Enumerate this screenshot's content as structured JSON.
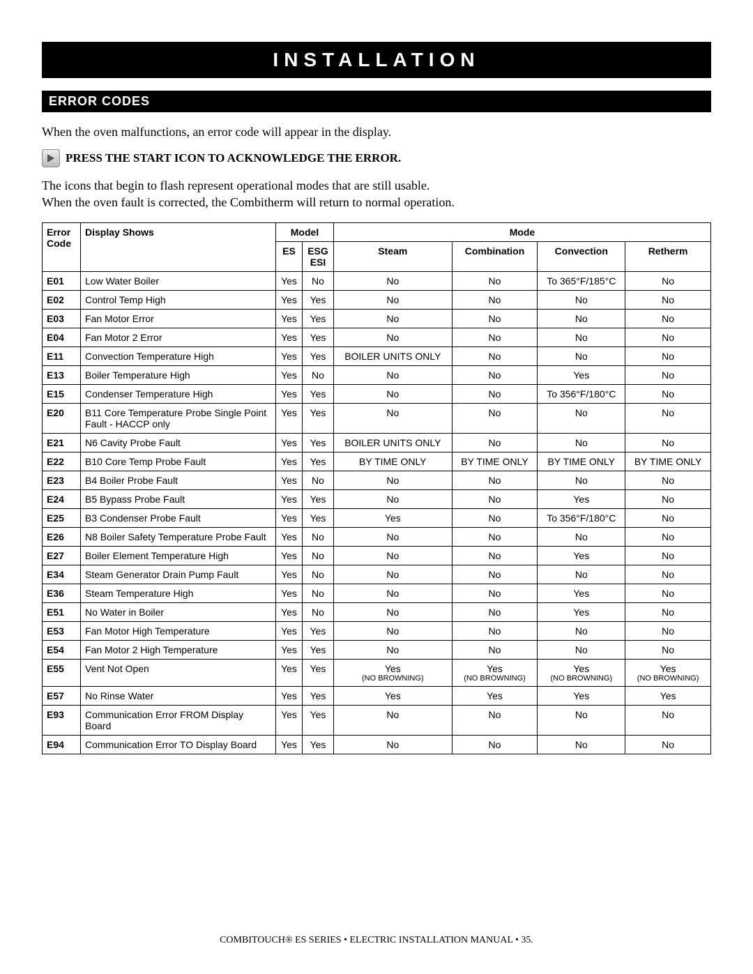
{
  "title": "INSTALLATION",
  "section": "ERROR CODES",
  "intro": "When the oven malfunctions, an error code will appear in the display.",
  "pressText": "PRESS THE START ICON TO ACKNOWLEDGE THE ERROR.",
  "body1": "The icons that begin to flash represent operational modes that are still usable.",
  "body2": "When the oven fault is corrected, the Combitherm will return to normal operation.",
  "headers": {
    "errorCode": "Error Code",
    "displayShows": "Display Shows",
    "model": "Model",
    "es": "ES",
    "esg": "ESG",
    "esi": "ESI",
    "mode": "Mode",
    "steam": "Steam",
    "combination": "Combination",
    "convection": "Convection",
    "retherm": "Retherm"
  },
  "rows": [
    {
      "code": "E01",
      "display": "Low Water Boiler",
      "es": "Yes",
      "esg": "No",
      "steam": "No",
      "combination": "No",
      "convection": "To 365°F/185°C",
      "retherm": "No"
    },
    {
      "code": "E02",
      "display": "Control Temp High",
      "es": "Yes",
      "esg": "Yes",
      "steam": "No",
      "combination": "No",
      "convection": "No",
      "retherm": "No"
    },
    {
      "code": "E03",
      "display": "Fan Motor Error",
      "es": "Yes",
      "esg": "Yes",
      "steam": "No",
      "combination": "No",
      "convection": "No",
      "retherm": "No"
    },
    {
      "code": "E04",
      "display": "Fan Motor 2 Error",
      "es": "Yes",
      "esg": "Yes",
      "steam": "No",
      "combination": "No",
      "convection": "No",
      "retherm": "No"
    },
    {
      "code": "E11",
      "display": "Convection Temperature High",
      "es": "Yes",
      "esg": "Yes",
      "steam": "BOILER UNITS ONLY",
      "combination": "No",
      "convection": "No",
      "retherm": "No"
    },
    {
      "code": "E13",
      "display": "Boiler Temperature High",
      "es": "Yes",
      "esg": "No",
      "steam": "No",
      "combination": "No",
      "convection": "Yes",
      "retherm": "No"
    },
    {
      "code": "E15",
      "display": "Condenser Temperature High",
      "es": "Yes",
      "esg": "Yes",
      "steam": "No",
      "combination": "No",
      "convection": "To 356°F/180°C",
      "retherm": "No"
    },
    {
      "code": "E20",
      "display": "B11 Core Temperature Probe Single Point Fault - HACCP only",
      "es": "Yes",
      "esg": "Yes",
      "steam": "No",
      "combination": "No",
      "convection": "No",
      "retherm": "No"
    },
    {
      "code": "E21",
      "display": "N6 Cavity Probe Fault",
      "es": "Yes",
      "esg": "Yes",
      "steam": "BOILER UNITS ONLY",
      "combination": "No",
      "convection": "No",
      "retherm": "No"
    },
    {
      "code": "E22",
      "display": "B10 Core Temp Probe Fault",
      "es": "Yes",
      "esg": "Yes",
      "steam": "BY TIME ONLY",
      "combination": "BY TIME ONLY",
      "convection": "BY TIME ONLY",
      "retherm": "BY TIME ONLY"
    },
    {
      "code": "E23",
      "display": "B4 Boiler Probe Fault",
      "es": "Yes",
      "esg": "No",
      "steam": "No",
      "combination": "No",
      "convection": "No",
      "retherm": "No"
    },
    {
      "code": "E24",
      "display": "B5 Bypass Probe Fault",
      "es": "Yes",
      "esg": "Yes",
      "steam": "No",
      "combination": "No",
      "convection": "Yes",
      "retherm": "No"
    },
    {
      "code": "E25",
      "display": "B3 Condenser Probe Fault",
      "es": "Yes",
      "esg": "Yes",
      "steam": "Yes",
      "combination": "No",
      "convection": "To 356°F/180°C",
      "retherm": "No"
    },
    {
      "code": "E26",
      "display": "N8 Boiler Safety Temperature Probe Fault",
      "es": "Yes",
      "esg": "No",
      "steam": "No",
      "combination": "No",
      "convection": "No",
      "retherm": "No"
    },
    {
      "code": "E27",
      "display": "Boiler Element Temperature High",
      "es": "Yes",
      "esg": "No",
      "steam": "No",
      "combination": "No",
      "convection": "Yes",
      "retherm": "No"
    },
    {
      "code": "E34",
      "display": "Steam Generator Drain Pump Fault",
      "es": "Yes",
      "esg": "No",
      "steam": "No",
      "combination": "No",
      "convection": "No",
      "retherm": "No"
    },
    {
      "code": "E36",
      "display": "Steam Temperature High",
      "es": "Yes",
      "esg": "No",
      "steam": "No",
      "combination": "No",
      "convection": "Yes",
      "retherm": "No"
    },
    {
      "code": "E51",
      "display": "No Water in Boiler",
      "es": "Yes",
      "esg": "No",
      "steam": "No",
      "combination": "No",
      "convection": "Yes",
      "retherm": "No"
    },
    {
      "code": "E53",
      "display": "Fan Motor High Temperature",
      "es": "Yes",
      "esg": "Yes",
      "steam": "No",
      "combination": "No",
      "convection": "No",
      "retherm": "No"
    },
    {
      "code": "E54",
      "display": "Fan Motor 2 High Temperature",
      "es": "Yes",
      "esg": "Yes",
      "steam": "No",
      "combination": "No",
      "convection": "No",
      "retherm": "No"
    },
    {
      "code": "E55",
      "display": "Vent Not Open",
      "es": "Yes",
      "esg": "Yes",
      "steam": "Yes",
      "steamNote": "(NO BROWNING)",
      "combination": "Yes",
      "combinationNote": "(NO BROWNING)",
      "convection": "Yes",
      "convectionNote": "(NO BROWNING)",
      "retherm": "Yes",
      "rethermNote": "(NO BROWNING)"
    },
    {
      "code": "E57",
      "display": "No Rinse Water",
      "es": "Yes",
      "esg": "Yes",
      "steam": "Yes",
      "combination": "Yes",
      "convection": "Yes",
      "retherm": "Yes"
    },
    {
      "code": "E93",
      "display": "Communication Error FROM Display Board",
      "es": "Yes",
      "esg": "Yes",
      "steam": "No",
      "combination": "No",
      "convection": "No",
      "retherm": "No"
    },
    {
      "code": "E94",
      "display": "Communication Error TO Display Board",
      "es": "Yes",
      "esg": "Yes",
      "steam": "No",
      "combination": "No",
      "convection": "No",
      "retherm": "No"
    }
  ],
  "footer": "COMBITOUCH® ES SERIES • ELECTRIC INSTALLATION MANUAL • 35."
}
